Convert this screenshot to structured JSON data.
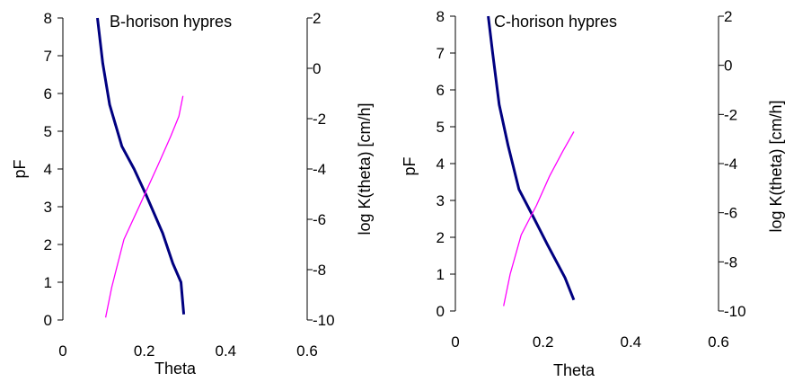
{
  "chart_data": [
    {
      "type": "line",
      "title": "B-horison hypres",
      "xlabel": "Theta",
      "ylabel": "pF",
      "y2label": "log K(theta) [cm/h]",
      "xlim": [
        0,
        0.6
      ],
      "ylim": [
        0,
        8
      ],
      "y2lim": [
        -10,
        2
      ],
      "xticks": [
        "0",
        "0.2",
        "0.4",
        "0.6"
      ],
      "yticks": [
        "0",
        "1",
        "2",
        "3",
        "4",
        "5",
        "6",
        "7",
        "8"
      ],
      "y2ticks": [
        "-10",
        "-8",
        "-6",
        "-4",
        "-2",
        "0",
        "2"
      ],
      "grid": false,
      "series": [
        {
          "axis": "left",
          "color": "#000080",
          "points": [
            [
              0.085,
              8.0
            ],
            [
              0.098,
              6.8
            ],
            [
              0.115,
              5.7
            ],
            [
              0.145,
              4.6
            ],
            [
              0.175,
              4.0
            ],
            [
              0.205,
              3.3
            ],
            [
              0.245,
              2.3
            ],
            [
              0.27,
              1.5
            ],
            [
              0.29,
              1.0
            ],
            [
              0.297,
              0.15
            ]
          ]
        },
        {
          "axis": "right",
          "color": "#ff00ff",
          "points": [
            [
              0.105,
              -9.9
            ],
            [
              0.12,
              -8.7
            ],
            [
              0.15,
              -6.8
            ],
            [
              0.19,
              -5.4
            ],
            [
              0.235,
              -3.8
            ],
            [
              0.265,
              -2.7
            ],
            [
              0.285,
              -1.9
            ],
            [
              0.295,
              -1.1
            ]
          ]
        }
      ]
    },
    {
      "type": "line",
      "title": "C-horison hypres",
      "xlabel": "Theta",
      "ylabel": "pF",
      "y2label": "log K(theta) [cm/h]",
      "xlim": [
        0,
        0.6
      ],
      "ylim": [
        0,
        8
      ],
      "y2lim": [
        -10,
        2
      ],
      "xticks": [
        "0",
        "0.2",
        "0.4",
        "0.6"
      ],
      "yticks": [
        "0",
        "1",
        "2",
        "3",
        "4",
        "5",
        "6",
        "7",
        "8"
      ],
      "y2ticks": [
        "-10",
        "-8",
        "-6",
        "-4",
        "-2",
        "0",
        "2"
      ],
      "grid": false,
      "series": [
        {
          "axis": "left",
          "color": "#000080",
          "points": [
            [
              0.075,
              8.0
            ],
            [
              0.085,
              7.0
            ],
            [
              0.1,
              5.6
            ],
            [
              0.12,
              4.5
            ],
            [
              0.145,
              3.3
            ],
            [
              0.18,
              2.5
            ],
            [
              0.21,
              1.8
            ],
            [
              0.25,
              0.9
            ],
            [
              0.27,
              0.3
            ]
          ]
        },
        {
          "axis": "right",
          "color": "#ff00ff",
          "points": [
            [
              0.11,
              -9.8
            ],
            [
              0.125,
              -8.5
            ],
            [
              0.15,
              -6.9
            ],
            [
              0.185,
              -5.7
            ],
            [
              0.215,
              -4.5
            ],
            [
              0.245,
              -3.5
            ],
            [
              0.27,
              -2.7
            ]
          ]
        }
      ]
    }
  ]
}
